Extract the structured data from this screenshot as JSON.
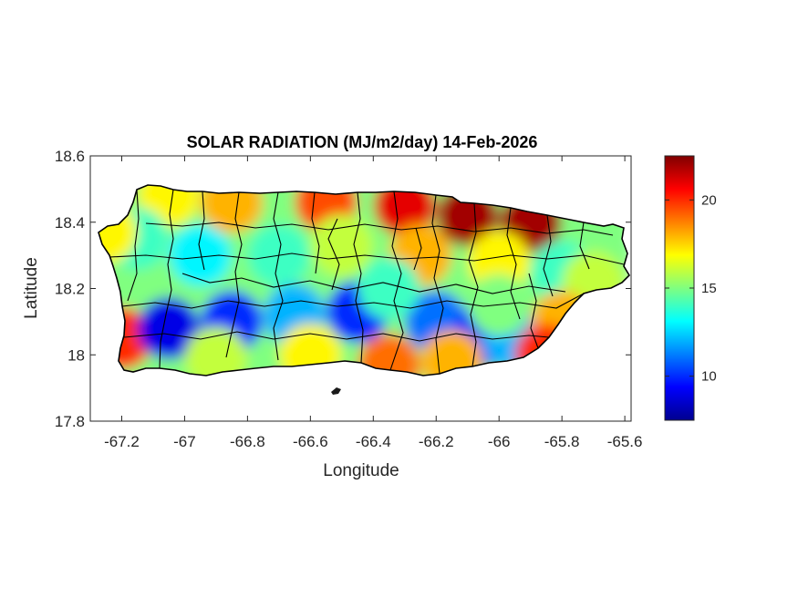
{
  "chart_data": {
    "type": "heatmap",
    "title": "SOLAR RADIATION (MJ/m2/day) 14-Feb-2026",
    "xlabel": "Longitude",
    "ylabel": "Latitude",
    "xlim": [
      -67.3,
      -65.58
    ],
    "ylim": [
      17.8,
      18.6
    ],
    "xticks": [
      -67.2,
      -67,
      -66.8,
      -66.6,
      -66.4,
      -66.2,
      -66,
      -65.8,
      -65.6
    ],
    "yticks": [
      17.8,
      18,
      18.2,
      18.4,
      18.6
    ],
    "xtick_labels": [
      "-67.2",
      "-67",
      "-66.8",
      "-66.6",
      "-66.4",
      "-66.2",
      "-66",
      "-65.8",
      "-65.6"
    ],
    "ytick_labels": [
      "17.8",
      "18",
      "18.2",
      "18.4",
      "18.6"
    ],
    "colorbar": {
      "colormap": "jet",
      "range": [
        7.5,
        22.5
      ],
      "ticks": [
        10,
        15,
        20
      ],
      "tick_labels": [
        "10",
        "15",
        "20"
      ]
    },
    "grid": false,
    "field_samples": [
      {
        "lon": -66.1,
        "lat": 18.42,
        "value": 22
      },
      {
        "lon": -65.9,
        "lat": 18.4,
        "value": 22
      },
      {
        "lon": -66.3,
        "lat": 18.45,
        "value": 21
      },
      {
        "lon": -66.55,
        "lat": 18.46,
        "value": 19.5
      },
      {
        "lon": -66.85,
        "lat": 18.46,
        "value": 18
      },
      {
        "lon": -67.05,
        "lat": 18.48,
        "value": 17
      },
      {
        "lon": -67.15,
        "lat": 18.35,
        "value": 14
      },
      {
        "lon": -67.25,
        "lat": 18.37,
        "value": 17
      },
      {
        "lon": -67.2,
        "lat": 18.05,
        "value": 20
      },
      {
        "lon": -66.95,
        "lat": 18.3,
        "value": 13
      },
      {
        "lon": -66.7,
        "lat": 18.3,
        "value": 14
      },
      {
        "lon": -66.5,
        "lat": 18.33,
        "value": 16
      },
      {
        "lon": -66.25,
        "lat": 18.3,
        "value": 18
      },
      {
        "lon": -66.0,
        "lat": 18.28,
        "value": 17
      },
      {
        "lon": -65.8,
        "lat": 18.25,
        "value": 14
      },
      {
        "lon": -65.7,
        "lat": 18.22,
        "value": 16
      },
      {
        "lon": -67.05,
        "lat": 18.08,
        "value": 9
      },
      {
        "lon": -66.85,
        "lat": 18.1,
        "value": 10
      },
      {
        "lon": -66.65,
        "lat": 18.12,
        "value": 12
      },
      {
        "lon": -66.45,
        "lat": 18.13,
        "value": 10
      },
      {
        "lon": -66.2,
        "lat": 18.1,
        "value": 11
      },
      {
        "lon": -66.05,
        "lat": 18.06,
        "value": 10
      },
      {
        "lon": -65.95,
        "lat": 18.05,
        "value": 12
      },
      {
        "lon": -66.35,
        "lat": 18.2,
        "value": 14
      },
      {
        "lon": -66.0,
        "lat": 18.15,
        "value": 15
      },
      {
        "lon": -65.8,
        "lat": 18.1,
        "value": 18
      },
      {
        "lon": -66.9,
        "lat": 17.99,
        "value": 16
      },
      {
        "lon": -66.6,
        "lat": 18.0,
        "value": 17
      },
      {
        "lon": -66.35,
        "lat": 17.97,
        "value": 19
      },
      {
        "lon": -66.15,
        "lat": 17.98,
        "value": 18
      },
      {
        "lon": -65.85,
        "lat": 18.0,
        "value": 20
      }
    ]
  }
}
